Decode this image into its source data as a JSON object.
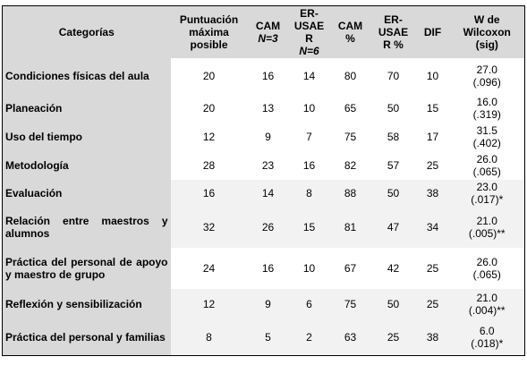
{
  "headers": {
    "categorias": "Categorías",
    "puntuacion": "Puntuación máxima posible",
    "cam": "CAM",
    "cam_n": "N=3",
    "erusaer": "ER-USAE R",
    "erusaer_n": "N=6",
    "cam_pct": "CAM %",
    "erusaer_pct": "ER-USAE R %",
    "dif": "DIF",
    "wilcoxon": "W de Wilcoxon (sig)"
  },
  "rows": [
    {
      "categoria": "Condiciones físicas del aula",
      "puntuacion": "20",
      "cam": "16",
      "erusaer": "14",
      "cam_pct": "80",
      "erusaer_pct": "70",
      "dif": "10",
      "w": "27.0",
      "sig": "(.096)"
    },
    {
      "categoria": "Planeación",
      "puntuacion": "20",
      "cam": "13",
      "erusaer": "10",
      "cam_pct": "65",
      "erusaer_pct": "50",
      "dif": "15",
      "w": "16.0",
      "sig": "(.319)"
    },
    {
      "categoria": "Uso del tiempo",
      "puntuacion": "12",
      "cam": "9",
      "erusaer": "7",
      "cam_pct": "75",
      "erusaer_pct": "58",
      "dif": "17",
      "w": "31.5",
      "sig": "(.402)"
    },
    {
      "categoria": "Metodología",
      "puntuacion": "28",
      "cam": "23",
      "erusaer": "16",
      "cam_pct": "82",
      "erusaer_pct": "57",
      "dif": "25",
      "w": "26.0",
      "sig": "(.065)"
    },
    {
      "categoria": "Evaluación",
      "puntuacion": "16",
      "cam": "14",
      "erusaer": "8",
      "cam_pct": "88",
      "erusaer_pct": "50",
      "dif": "38",
      "w": "23.0",
      "sig": "(.017)*"
    },
    {
      "categoria": "Relación entre maestros y alumnos",
      "puntuacion": "32",
      "cam": "26",
      "erusaer": "15",
      "cam_pct": "81",
      "erusaer_pct": "47",
      "dif": "34",
      "w": "21.0",
      "sig": "(.005)**"
    },
    {
      "categoria": "Práctica del personal de apoyo y maestro de grupo",
      "puntuacion": "24",
      "cam": "16",
      "erusaer": "10",
      "cam_pct": "67",
      "erusaer_pct": "42",
      "dif": "25",
      "w": "26.0",
      "sig": "(.065)"
    },
    {
      "categoria": "Reflexión y sensibilización",
      "puntuacion": "12",
      "cam": "9",
      "erusaer": "6",
      "cam_pct": "75",
      "erusaer_pct": "50",
      "dif": "25",
      "w": "21.0",
      "sig": "(.004)**"
    },
    {
      "categoria": "Práctica del personal y familias",
      "puntuacion": "8",
      "cam": "5",
      "erusaer": "2",
      "cam_pct": "63",
      "erusaer_pct": "25",
      "dif": "38",
      "w": "6.0",
      "sig": "(.018)*"
    }
  ]
}
